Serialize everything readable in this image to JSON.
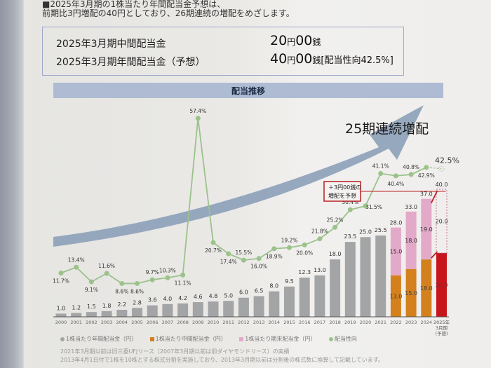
{
  "intro": {
    "line1": "■2025年3月期の1株当たり年間配当金予想は、",
    "line2": "前期比3円増配の40円としており、26期連続の増配をめざします。"
  },
  "summary": {
    "interim_label": "2025年3月期中間配当金",
    "interim_yen": "20",
    "interim_yen_unit": "円",
    "interim_sen": "00",
    "interim_sen_unit": "銭",
    "annual_label": "2025年3月期年間配当金（予想）",
    "annual_yen": "40",
    "annual_yen_unit": "円",
    "annual_sen": "00",
    "annual_sen_unit": "銭",
    "annual_note": "[配当性向42.5%]"
  },
  "section_title": "配当推移",
  "arrow_text": "25期連続増配",
  "callout": {
    "line1": "＋3円00銭の",
    "line2": "増配を予想"
  },
  "colors": {
    "annual_bar": "#a3a4a6",
    "interim_bar": "#d3801d",
    "yearend_bar": "#e3a9c8",
    "forecast_bar": "#c8151c",
    "payout_line": "#9bc28b",
    "arrow": "#8ca0b8",
    "callout": "#b81e22"
  },
  "legend": [
    {
      "key": "annual",
      "label": "1株当たり年間配当金（円）"
    },
    {
      "key": "interim",
      "label": "1株当たり中間配当金（円）"
    },
    {
      "key": "yearend",
      "label": "1株当たり期末配当金（円）"
    },
    {
      "key": "payout",
      "label": "配当性向"
    }
  ],
  "footnotes": [
    "2021年3月期以前は旧三菱UFJリース（2007年3月期以前は旧ダイヤモンドリース）の実績",
    "2013年4月1日付で1株を10株とする株式分割を実施しており、2013年3月期以前は分割後の株式数に換算して記載しています。"
  ],
  "chart_data": {
    "type": "bar",
    "title": "配当推移",
    "categories": [
      "2000",
      "2001",
      "2002",
      "2003",
      "2004",
      "2005",
      "2006",
      "2007",
      "2008",
      "2009",
      "2010",
      "2011",
      "2012",
      "2013",
      "2014",
      "2015",
      "2016",
      "2017",
      "2018",
      "2019",
      "2020",
      "2021",
      "2022",
      "2023",
      "2024",
      "2025年3月期(予想)"
    ],
    "xlabel": "",
    "ylabel": "",
    "series": [
      {
        "name": "1株当たり年間配当金（円）",
        "type": "bar",
        "values": [
          1.0,
          1.2,
          1.5,
          1.8,
          2.2,
          2.8,
          3.6,
          4.0,
          4.2,
          4.6,
          4.8,
          5.0,
          6.0,
          6.5,
          8.0,
          9.5,
          12.3,
          13.0,
          18.0,
          23.5,
          25.0,
          25.5,
          28.0,
          33.0,
          37.0,
          40.0
        ]
      },
      {
        "name": "1株当たり中間配当金（円）",
        "type": "stacked-bar",
        "values": [
          null,
          null,
          null,
          null,
          null,
          null,
          null,
          null,
          null,
          null,
          null,
          null,
          null,
          null,
          null,
          null,
          null,
          null,
          null,
          null,
          null,
          null,
          13.0,
          15.0,
          18.0,
          20.0
        ]
      },
      {
        "name": "1株当たり期末配当金（円）",
        "type": "stacked-bar",
        "values": [
          null,
          null,
          null,
          null,
          null,
          null,
          null,
          null,
          null,
          null,
          null,
          null,
          null,
          null,
          null,
          null,
          null,
          null,
          null,
          null,
          null,
          null,
          15.0,
          18.0,
          19.0,
          20.0
        ]
      },
      {
        "name": "配当性向",
        "type": "line",
        "unit": "%",
        "values": [
          11.7,
          13.4,
          9.1,
          11.6,
          8.6,
          8.6,
          9.7,
          10.3,
          11.1,
          57.4,
          20.7,
          17.4,
          15.5,
          16.0,
          18.9,
          19.2,
          20.0,
          21.8,
          25.2,
          30.4,
          31.5,
          41.1,
          40.4,
          40.8,
          42.9,
          42.5
        ]
      }
    ],
    "forecast_index": 25,
    "ylim": [
      0,
      40
    ],
    "grid": false,
    "legend_position": "bottom"
  }
}
